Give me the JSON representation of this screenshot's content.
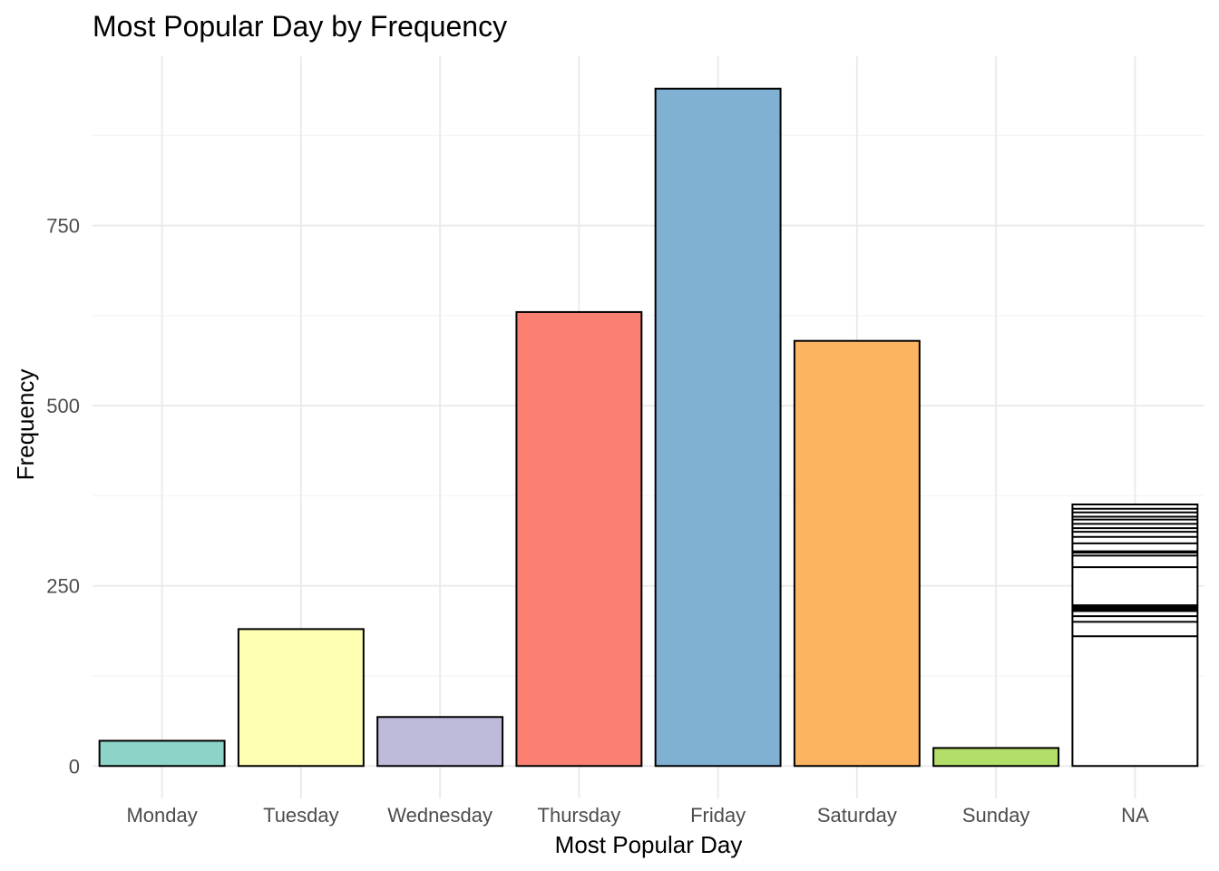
{
  "chart_data": {
    "type": "bar",
    "title": "Most Popular Day by Frequency",
    "xlabel": "Most Popular Day",
    "ylabel": "Frequency",
    "categories": [
      "Monday",
      "Tuesday",
      "Wednesday",
      "Thursday",
      "Friday",
      "Saturday",
      "Sunday",
      "NA"
    ],
    "values": [
      35,
      190,
      68,
      630,
      940,
      590,
      25,
      363
    ],
    "colors": [
      "#8dd3c7",
      "#ffffb3",
      "#bebada",
      "#fb8072",
      "#80b1d3",
      "#fdb462",
      "#b3de69",
      "#ffffff"
    ],
    "na_stack_boundaries": [
      180,
      200,
      208,
      215,
      217,
      219,
      221,
      223,
      276,
      292,
      296,
      298,
      309,
      318,
      325,
      330,
      336,
      342,
      346,
      352,
      357,
      363
    ],
    "ylim": [
      -45,
      985
    ],
    "yticks": [
      0,
      250,
      500,
      750
    ],
    "grid": true,
    "legend": "none"
  }
}
